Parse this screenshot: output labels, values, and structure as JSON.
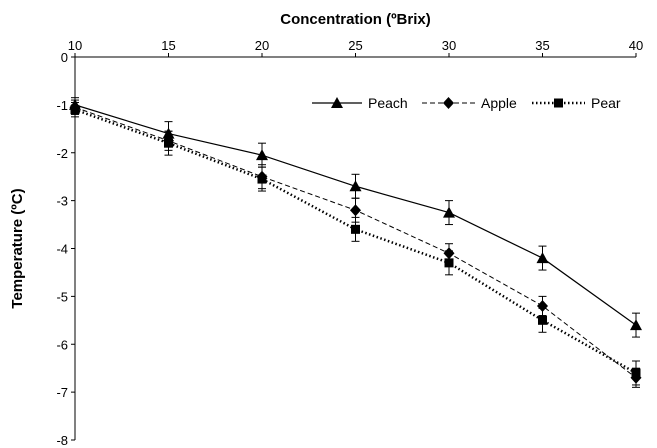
{
  "chart_data": {
    "type": "line",
    "title": "",
    "xlabel": "Concentration  (ºBrix)",
    "ylabel": "Temperature (ºC)",
    "x_axis_position": "top",
    "xlim": [
      10,
      40
    ],
    "ylim": [
      -8,
      0
    ],
    "xticks": [
      10,
      15,
      20,
      25,
      30,
      35,
      40
    ],
    "yticks": [
      0,
      -1,
      -2,
      -3,
      -4,
      -5,
      -6,
      -7,
      -8
    ],
    "grid": false,
    "legend_position": "top-right",
    "x": [
      10,
      15,
      20,
      25,
      30,
      35,
      40
    ],
    "series": [
      {
        "name": "Peach",
        "marker": "triangle",
        "line_style": "solid",
        "values": [
          -1.0,
          -1.6,
          -2.05,
          -2.7,
          -3.25,
          -4.2,
          -5.6
        ],
        "errors": [
          0.15,
          0.25,
          0.25,
          0.25,
          0.25,
          0.25,
          0.25
        ]
      },
      {
        "name": "Apple",
        "marker": "diamond",
        "line_style": "dashed",
        "values": [
          -1.05,
          -1.75,
          -2.5,
          -3.2,
          -4.1,
          -5.2,
          -6.7
        ],
        "errors": [
          0.15,
          0.2,
          0.25,
          0.25,
          0.2,
          0.2,
          0.2
        ]
      },
      {
        "name": "Pear",
        "marker": "square",
        "line_style": "dotted",
        "values": [
          -1.1,
          -1.8,
          -2.55,
          -3.6,
          -4.3,
          -5.5,
          -6.6
        ],
        "errors": [
          0.15,
          0.25,
          0.25,
          0.25,
          0.25,
          0.25,
          0.25
        ]
      }
    ]
  }
}
